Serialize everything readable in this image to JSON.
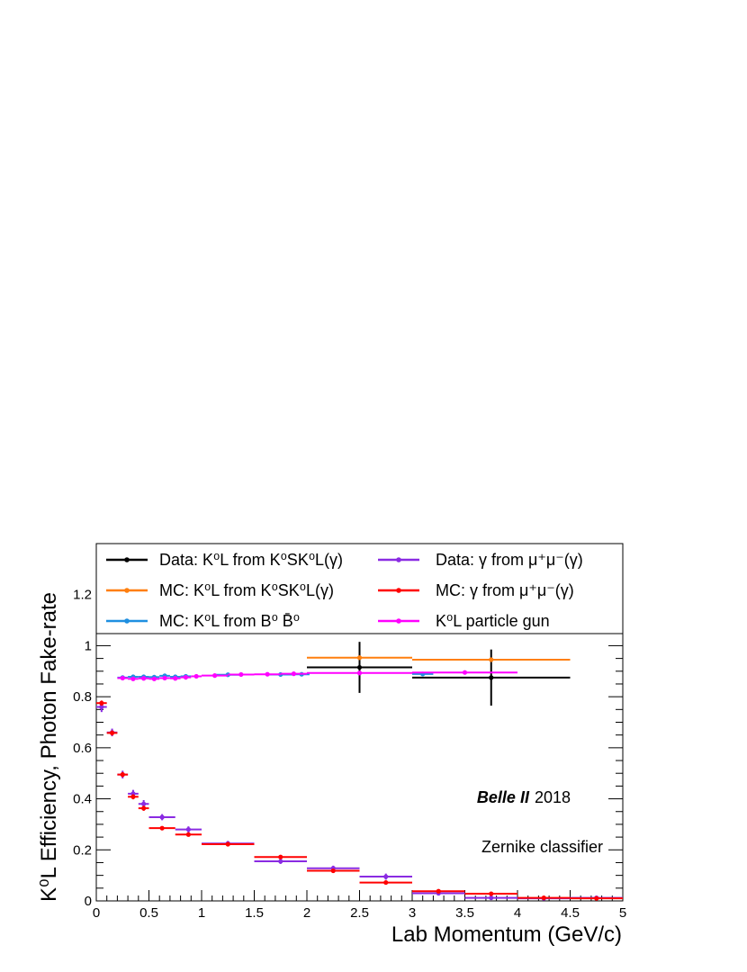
{
  "chart_data": {
    "type": "scatter",
    "xlabel": "Lab Momentum (GeV/c)",
    "ylabel": "K⁰L Efficiency, Photon Fake-rate",
    "xlim": [
      0,
      5
    ],
    "ylim": [
      0,
      1.4
    ],
    "x_ticks": [
      "0",
      "0.5",
      "1",
      "1.5",
      "2",
      "2.5",
      "3",
      "3.5",
      "4",
      "4.5",
      "5"
    ],
    "y_ticks": [
      "0",
      "0.2",
      "0.4",
      "0.6",
      "0.8",
      "1",
      "1.2"
    ],
    "grid": false,
    "legend_position": "top",
    "annotations": {
      "experiment": "Belle II",
      "year": "2018",
      "classifier": "Zernike classifier"
    },
    "series": [
      {
        "name": "Data: K⁰L from K⁰SK⁰L(γ)",
        "color": "#000000",
        "points": [
          {
            "x": 2.5,
            "xerr": 0.5,
            "y": 0.915,
            "yerr": 0.1
          },
          {
            "x": 3.75,
            "xerr": 0.75,
            "y": 0.875,
            "yerr": 0.11
          }
        ]
      },
      {
        "name": "MC: K⁰L from K⁰SK⁰L(γ)",
        "color": "#ff7f0e",
        "points": [
          {
            "x": 2.5,
            "xerr": 0.5,
            "y": 0.953,
            "yerr": 0.005
          },
          {
            "x": 3.75,
            "xerr": 0.75,
            "y": 0.945,
            "yerr": 0.005
          }
        ]
      },
      {
        "name": "MC: K⁰L from B⁰ B̄⁰",
        "color": "#1f8fe0",
        "points": [
          {
            "x": 0.25,
            "xerr": 0.05,
            "y": 0.875,
            "yerr": 0.004
          },
          {
            "x": 0.35,
            "xerr": 0.05,
            "y": 0.878,
            "yerr": 0.004
          },
          {
            "x": 0.45,
            "xerr": 0.05,
            "y": 0.878,
            "yerr": 0.004
          },
          {
            "x": 0.55,
            "xerr": 0.05,
            "y": 0.877,
            "yerr": 0.004
          },
          {
            "x": 0.65,
            "xerr": 0.05,
            "y": 0.882,
            "yerr": 0.004
          },
          {
            "x": 0.75,
            "xerr": 0.05,
            "y": 0.878,
            "yerr": 0.004
          },
          {
            "x": 0.85,
            "xerr": 0.05,
            "y": 0.88,
            "yerr": 0.004
          },
          {
            "x": 1.25,
            "xerr": 0.125,
            "y": 0.886,
            "yerr": 0.004
          },
          {
            "x": 1.75,
            "xerr": 0.125,
            "y": 0.887,
            "yerr": 0.004
          },
          {
            "x": 1.95,
            "xerr": 0.075,
            "y": 0.888,
            "yerr": 0.004
          },
          {
            "x": 3.1,
            "xerr": 0.1,
            "y": 0.889,
            "yerr": 0.004
          }
        ]
      },
      {
        "name": "Data: γ from μ⁺μ⁻(γ)",
        "color": "#8a2be2",
        "points": [
          {
            "x": 0.05,
            "xerr": 0.05,
            "y": 0.76,
            "yerr": 0.02
          },
          {
            "x": 0.15,
            "xerr": 0.05,
            "y": 0.66,
            "yerr": 0.015
          },
          {
            "x": 0.25,
            "xerr": 0.05,
            "y": 0.495,
            "yerr": 0.015
          },
          {
            "x": 0.35,
            "xerr": 0.05,
            "y": 0.42,
            "yerr": 0.015
          },
          {
            "x": 0.45,
            "xerr": 0.05,
            "y": 0.38,
            "yerr": 0.015
          },
          {
            "x": 0.625,
            "xerr": 0.125,
            "y": 0.328,
            "yerr": 0.012
          },
          {
            "x": 0.875,
            "xerr": 0.125,
            "y": 0.28,
            "yerr": 0.012
          },
          {
            "x": 1.25,
            "xerr": 0.25,
            "y": 0.225,
            "yerr": 0.01
          },
          {
            "x": 1.75,
            "xerr": 0.25,
            "y": 0.155,
            "yerr": 0.01
          },
          {
            "x": 2.25,
            "xerr": 0.25,
            "y": 0.128,
            "yerr": 0.01
          },
          {
            "x": 2.75,
            "xerr": 0.25,
            "y": 0.095,
            "yerr": 0.012
          },
          {
            "x": 3.25,
            "xerr": 0.25,
            "y": 0.03,
            "yerr": 0.008
          },
          {
            "x": 3.75,
            "xerr": 0.25,
            "y": 0.012,
            "yerr": 0.005
          },
          {
            "x": 4.25,
            "xerr": 0.25,
            "y": 0.01,
            "yerr": 0.004
          },
          {
            "x": 4.75,
            "xerr": 0.25,
            "y": 0.012,
            "yerr": 0.004
          }
        ]
      },
      {
        "name": "MC: γ from μ⁺μ⁻(γ)",
        "color": "#ff0000",
        "points": [
          {
            "x": 0.05,
            "xerr": 0.05,
            "y": 0.775,
            "yerr": 0.01
          },
          {
            "x": 0.15,
            "xerr": 0.05,
            "y": 0.658,
            "yerr": 0.01
          },
          {
            "x": 0.25,
            "xerr": 0.05,
            "y": 0.495,
            "yerr": 0.01
          },
          {
            "x": 0.35,
            "xerr": 0.05,
            "y": 0.408,
            "yerr": 0.01
          },
          {
            "x": 0.45,
            "xerr": 0.05,
            "y": 0.363,
            "yerr": 0.01
          },
          {
            "x": 0.625,
            "xerr": 0.125,
            "y": 0.285,
            "yerr": 0.005
          },
          {
            "x": 0.875,
            "xerr": 0.125,
            "y": 0.26,
            "yerr": 0.005
          },
          {
            "x": 1.25,
            "xerr": 0.25,
            "y": 0.222,
            "yerr": 0.005
          },
          {
            "x": 1.75,
            "xerr": 0.25,
            "y": 0.172,
            "yerr": 0.005
          },
          {
            "x": 2.25,
            "xerr": 0.25,
            "y": 0.118,
            "yerr": 0.005
          },
          {
            "x": 2.75,
            "xerr": 0.25,
            "y": 0.072,
            "yerr": 0.005
          },
          {
            "x": 3.25,
            "xerr": 0.25,
            "y": 0.038,
            "yerr": 0.004
          },
          {
            "x": 3.75,
            "xerr": 0.25,
            "y": 0.028,
            "yerr": 0.004
          },
          {
            "x": 4.25,
            "xerr": 0.25,
            "y": 0.012,
            "yerr": 0.003
          },
          {
            "x": 4.75,
            "xerr": 0.25,
            "y": 0.01,
            "yerr": 0.003
          }
        ]
      },
      {
        "name": "K⁰L particle gun",
        "color": "#ff00ff",
        "points": [
          {
            "x": 0.25,
            "xerr": 0.05,
            "y": 0.873,
            "yerr": 0.004
          },
          {
            "x": 0.35,
            "xerr": 0.05,
            "y": 0.87,
            "yerr": 0.004
          },
          {
            "x": 0.45,
            "xerr": 0.05,
            "y": 0.872,
            "yerr": 0.004
          },
          {
            "x": 0.55,
            "xerr": 0.05,
            "y": 0.87,
            "yerr": 0.004
          },
          {
            "x": 0.65,
            "xerr": 0.05,
            "y": 0.873,
            "yerr": 0.004
          },
          {
            "x": 0.75,
            "xerr": 0.05,
            "y": 0.872,
            "yerr": 0.004
          },
          {
            "x": 0.85,
            "xerr": 0.05,
            "y": 0.876,
            "yerr": 0.004
          },
          {
            "x": 0.95,
            "xerr": 0.05,
            "y": 0.88,
            "yerr": 0.004
          },
          {
            "x": 1.125,
            "xerr": 0.125,
            "y": 0.883,
            "yerr": 0.004
          },
          {
            "x": 1.375,
            "xerr": 0.125,
            "y": 0.887,
            "yerr": 0.004
          },
          {
            "x": 1.625,
            "xerr": 0.125,
            "y": 0.888,
            "yerr": 0.004
          },
          {
            "x": 1.875,
            "xerr": 0.125,
            "y": 0.89,
            "yerr": 0.004
          },
          {
            "x": 2.5,
            "xerr": 0.5,
            "y": 0.893,
            "yerr": 0.004
          },
          {
            "x": 3.5,
            "xerr": 0.5,
            "y": 0.895,
            "yerr": 0.004
          }
        ]
      }
    ]
  },
  "legend": {
    "entries": [
      {
        "label": "Data: K⁰L from K⁰SK⁰L(γ)",
        "color": "#000000"
      },
      {
        "label": "Data: γ from μ⁺μ⁻(γ)",
        "color": "#8a2be2"
      },
      {
        "label": "MC: K⁰L from K⁰SK⁰L(γ)",
        "color": "#ff7f0e"
      },
      {
        "label": "MC: γ from μ⁺μ⁻(γ)",
        "color": "#ff0000"
      },
      {
        "label": "MC: K⁰L from B⁰ B̄⁰",
        "color": "#1f8fe0"
      },
      {
        "label": "K⁰L particle gun",
        "color": "#ff00ff"
      }
    ]
  }
}
